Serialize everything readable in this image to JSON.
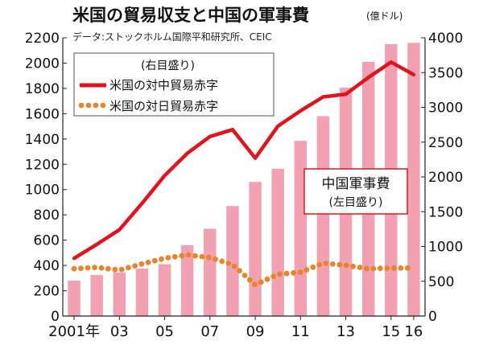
{
  "title": "米国の貿易収支と中国の軍事費",
  "unit": "(億ドル)",
  "source": "データ:ストックホルム国際平和研究所、CEIC",
  "colors": {
    "bar": "#f1a1b1",
    "us_china_line": "#e0141e",
    "us_japan_dots": "#e8842a",
    "axis": "#222222",
    "box_border": "#e0141e"
  },
  "chart_data": {
    "type": "bar",
    "x": [
      2001,
      2002,
      2003,
      2004,
      2005,
      2006,
      2007,
      2008,
      2009,
      2010,
      2011,
      2012,
      2013,
      2014,
      2015,
      2016
    ],
    "x_tick_labels": [
      {
        "year": 2001,
        "label": "2001年"
      },
      {
        "year": 2003,
        "label": "03"
      },
      {
        "year": 2005,
        "label": "05"
      },
      {
        "year": 2007,
        "label": "07"
      },
      {
        "year": 2009,
        "label": "09"
      },
      {
        "year": 2011,
        "label": "11"
      },
      {
        "year": 2013,
        "label": "13"
      },
      {
        "year": 2015,
        "label": "15"
      },
      {
        "year": 2016,
        "label": "16"
      }
    ],
    "left_axis": {
      "min": 0,
      "max": 2200,
      "ticks": [
        0,
        200,
        400,
        600,
        800,
        1000,
        1200,
        1400,
        1600,
        1800,
        2000,
        2200
      ]
    },
    "right_axis": {
      "min": 0,
      "max": 4000,
      "ticks": [
        0,
        500,
        1000,
        1500,
        2000,
        2500,
        3000,
        3500,
        4000
      ]
    },
    "bars": {
      "name": "中国軍事費",
      "axis_note": "(左目盛り)",
      "axis": "left",
      "values": [
        280,
        325,
        345,
        375,
        410,
        560,
        690,
        870,
        1060,
        1165,
        1385,
        1580,
        1805,
        2010,
        2150,
        2160
      ]
    },
    "lines": [
      {
        "name": "米国の対中貿易赤字",
        "axis": "right",
        "style": "line",
        "values": [
          830,
          1030,
          1240,
          1620,
          2020,
          2340,
          2580,
          2680,
          2270,
          2730,
          2950,
          3150,
          3190,
          3430,
          3650,
          3470
        ]
      },
      {
        "name": "米国の対日貿易赤字",
        "axis": "right",
        "style": "dotted",
        "values": [
          680,
          700,
          660,
          750,
          830,
          880,
          840,
          740,
          450,
          600,
          630,
          760,
          730,
          680,
          690,
          690
        ]
      }
    ],
    "legend": {
      "placement": "top-left",
      "note": "(右目盛り)"
    },
    "grid": false
  }
}
